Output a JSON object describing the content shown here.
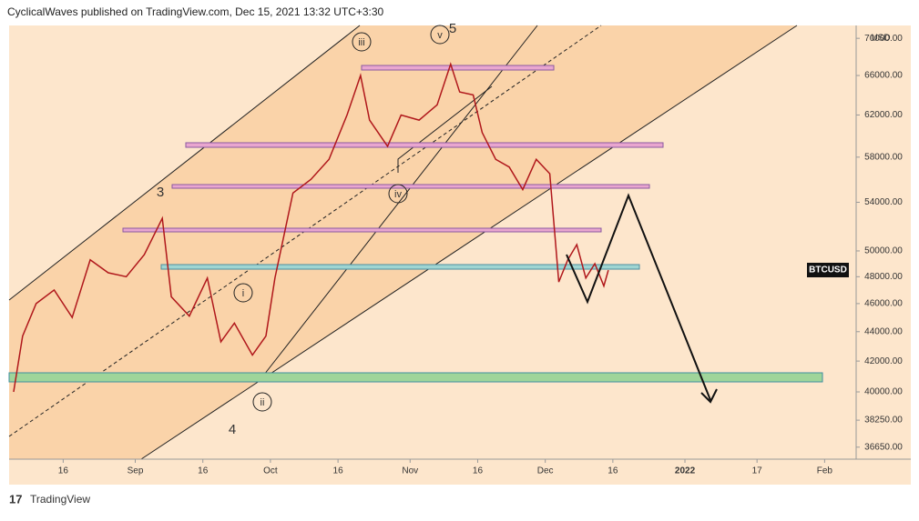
{
  "header": "CyclicalWaves published on TradingView.com, Dec 15, 2021 13:32 UTC+3:30",
  "footer": "TradingView",
  "chart_data": {
    "type": "line",
    "symbol": "BTCUSD",
    "currency": "USD",
    "log_scale": true,
    "grid": false,
    "annotations": [
      "iii",
      "v",
      "5",
      "3",
      "4",
      "i",
      "ii",
      "iv"
    ],
    "x": [
      "2021-08-05",
      "2021-08-07",
      "2021-08-10",
      "2021-08-14",
      "2021-08-18",
      "2021-08-22",
      "2021-08-26",
      "2021-08-30",
      "2021-09-03",
      "2021-09-07",
      "2021-09-09",
      "2021-09-13",
      "2021-09-17",
      "2021-09-20",
      "2021-09-23",
      "2021-09-27",
      "2021-09-30",
      "2021-10-02",
      "2021-10-06",
      "2021-10-10",
      "2021-10-14",
      "2021-10-18",
      "2021-10-21",
      "2021-10-23",
      "2021-10-27",
      "2021-10-30",
      "2021-11-03",
      "2021-11-07",
      "2021-11-10",
      "2021-11-12",
      "2021-11-15",
      "2021-11-17",
      "2021-11-20",
      "2021-11-23",
      "2021-11-26",
      "2021-11-29",
      "2021-12-02",
      "2021-12-04",
      "2021-12-06",
      "2021-12-08",
      "2021-12-10",
      "2021-12-12",
      "2021-12-14",
      "2021-12-15"
    ],
    "series": [
      {
        "name": "BTCUSD",
        "color": "#b0171b",
        "values": [
          40000,
          43700,
          46000,
          47000,
          45000,
          49300,
          48300,
          48000,
          49700,
          52650,
          46500,
          45100,
          47900,
          43300,
          44600,
          42400,
          43700,
          47900,
          54800,
          56000,
          57800,
          62000,
          66000,
          61500,
          59000,
          62000,
          61500,
          63000,
          67200,
          64300,
          64000,
          60300,
          57800,
          57100,
          55100,
          57800,
          56500,
          47600,
          49300,
          50500,
          47900,
          49000,
          47300,
          48500
        ]
      }
    ],
    "xlim": [
      "2021-08-04",
      "2022-02-08"
    ],
    "xticks": [
      {
        "value": "2021-08-16",
        "label": "16"
      },
      {
        "value": "2021-09-01",
        "label": "Sep"
      },
      {
        "value": "2021-09-16",
        "label": "16"
      },
      {
        "value": "2021-10-01",
        "label": "Oct"
      },
      {
        "value": "2021-10-16",
        "label": "16"
      },
      {
        "value": "2021-11-01",
        "label": "Nov"
      },
      {
        "value": "2021-11-16",
        "label": "16"
      },
      {
        "value": "2021-12-01",
        "label": "Dec"
      },
      {
        "value": "2021-12-16",
        "label": "16"
      },
      {
        "value": "2022-01-01",
        "label": "2022"
      },
      {
        "value": "2022-01-17",
        "label": "17"
      },
      {
        "value": "2022-02-01",
        "label": "Feb"
      }
    ],
    "ylim": [
      35960,
      71440
    ],
    "yticks": [
      {
        "value": 36650,
        "label": "36650.00"
      },
      {
        "value": 38250,
        "label": "38250.00"
      },
      {
        "value": 40000,
        "label": "40000.00"
      },
      {
        "value": 42000,
        "label": "42000.00"
      },
      {
        "value": 44000,
        "label": "44000.00"
      },
      {
        "value": 46000,
        "label": "46000.00"
      },
      {
        "value": 48000,
        "label": "48000.00"
      },
      {
        "value": 50000,
        "label": "50000.00"
      },
      {
        "value": 54000,
        "label": "54000.00"
      },
      {
        "value": 58000,
        "label": "58000.00"
      },
      {
        "value": 62000,
        "label": "62000.00"
      },
      {
        "value": 66000,
        "label": "66000.00"
      },
      {
        "value": 70000,
        "label": "70000.00"
      }
    ]
  }
}
